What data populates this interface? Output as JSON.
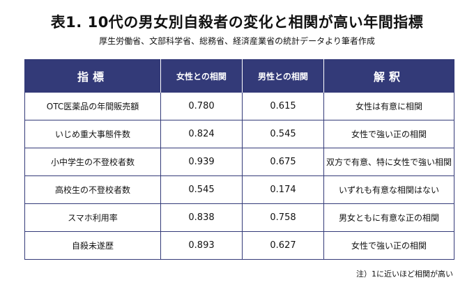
{
  "title": "表1. 10代の男女別自殺者の変化と相関が高い年間指標",
  "subtitle": "厚生労働省、文部科学省、総務省、経済産業省の統計データより筆者作成",
  "table": {
    "headers": [
      "指標",
      "女性との相関",
      "男性との相関",
      "解釈"
    ],
    "rows": [
      [
        "OTC医薬品の年間販売額",
        "0.780",
        "0.615",
        "女性は有意に相関"
      ],
      [
        "いじめ重大事態件数",
        "0.824",
        "0.545",
        "女性で強い正の相関"
      ],
      [
        "小中学生の不登校者数",
        "0.939",
        "0.675",
        "双方で有意、特に女性で強い相関"
      ],
      [
        "高校生の不登校者数",
        "0.545",
        "0.174",
        "いずれも有意な相関はない"
      ],
      [
        "スマホ利用率",
        "0.838",
        "0.758",
        "男女ともに有意な正の相関"
      ],
      [
        "自殺未遂歴",
        "0.893",
        "0.627",
        "女性で強い正の相関"
      ]
    ]
  },
  "footnote": "注）1に近いほど相関が高い"
}
